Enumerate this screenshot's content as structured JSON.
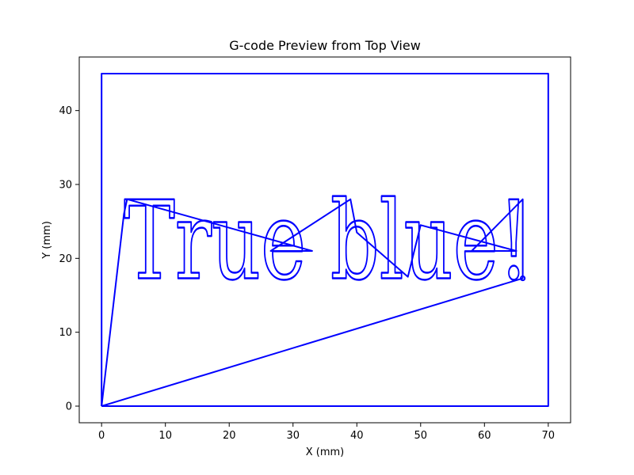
{
  "chart_data": {
    "type": "line",
    "title": "G-code Preview from Top View",
    "xlabel": "X (mm)",
    "ylabel": "Y (mm)",
    "xlim": [
      -3.5,
      73.5
    ],
    "ylim": [
      -2.25,
      47.25
    ],
    "xticks": [
      0,
      10,
      20,
      30,
      40,
      50,
      60,
      70
    ],
    "yticks": [
      0,
      10,
      20,
      30,
      40
    ],
    "grid": false,
    "color": "#0000ff",
    "engraved_text": "True blue!",
    "series": [
      {
        "role": "border",
        "x": [
          0,
          0,
          70,
          70,
          0
        ],
        "y": [
          0,
          45,
          45,
          0,
          0
        ]
      },
      {
        "role": "toolpath-travel",
        "x": [
          0,
          3.5,
          4,
          33,
          26.5,
          39,
          40,
          48,
          50,
          65,
          58,
          66,
          66,
          0
        ],
        "y": [
          0,
          26,
          28,
          21,
          21,
          28,
          23.5,
          17.5,
          24.5,
          21,
          21,
          28,
          17.3,
          0
        ]
      }
    ],
    "text_box": {
      "x_range": [
        3.5,
        67
      ],
      "baseline_y": 17.3,
      "cap_y": 28.0
    }
  }
}
